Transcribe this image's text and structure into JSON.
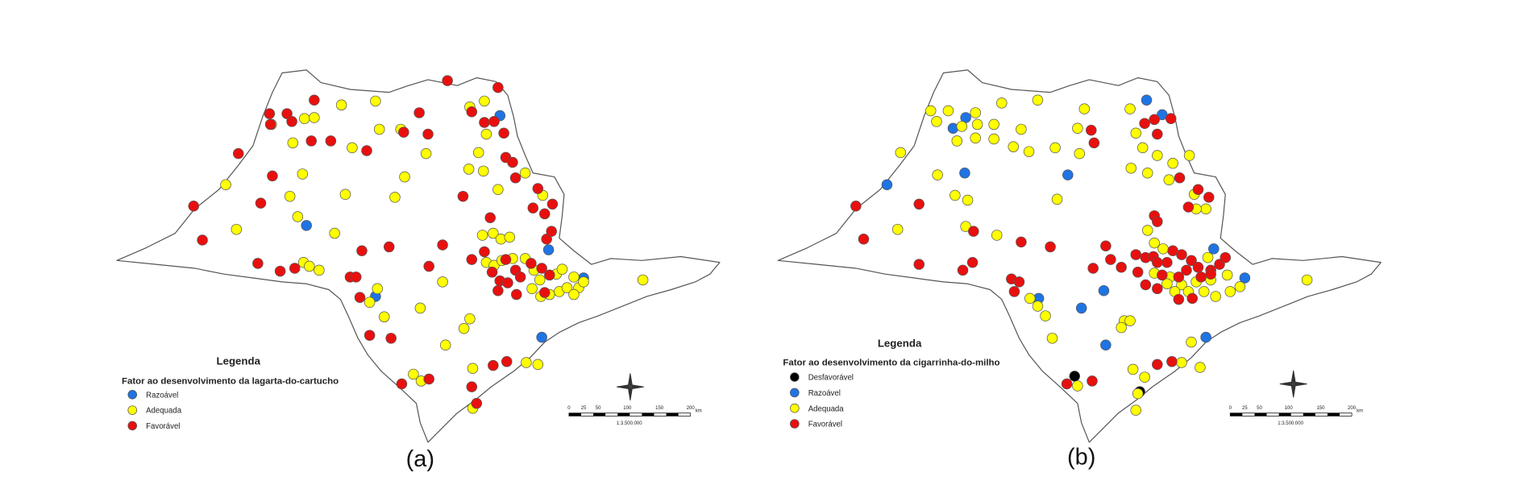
{
  "panels": [
    {
      "caption": "(a)",
      "legend": {
        "title": "Legenda",
        "subtitle": "Fator ao desenvolvimento da lagarta-do-cartucho",
        "items": [
          {
            "label": "Razoável",
            "color": "#1f74e4"
          },
          {
            "label": "Adequada",
            "color": "#ffff00"
          },
          {
            "label": "Favorável",
            "color": "#e8100f"
          }
        ]
      },
      "scale": {
        "ticks": [
          "0",
          "25",
          "50",
          "100",
          "150",
          "200"
        ],
        "unit": "km",
        "ratio": "1:3.500.000"
      }
    },
    {
      "caption": "(b)",
      "legend": {
        "title": "Legenda",
        "subtitle": "Fator ao desenvolvimento da cigarrinha-do-milho",
        "items": [
          {
            "label": "Desfavorável",
            "color": "#000000"
          },
          {
            "label": "Razoável",
            "color": "#1f74e4"
          },
          {
            "label": "Adequada",
            "color": "#ffff00"
          },
          {
            "label": "Favorável",
            "color": "#e8100f"
          }
        ]
      },
      "scale": {
        "ticks": [
          "0",
          "25",
          "50",
          "100",
          "150",
          "200"
        ],
        "unit": "km",
        "ratio": "1:3.500.000"
      }
    }
  ]
}
